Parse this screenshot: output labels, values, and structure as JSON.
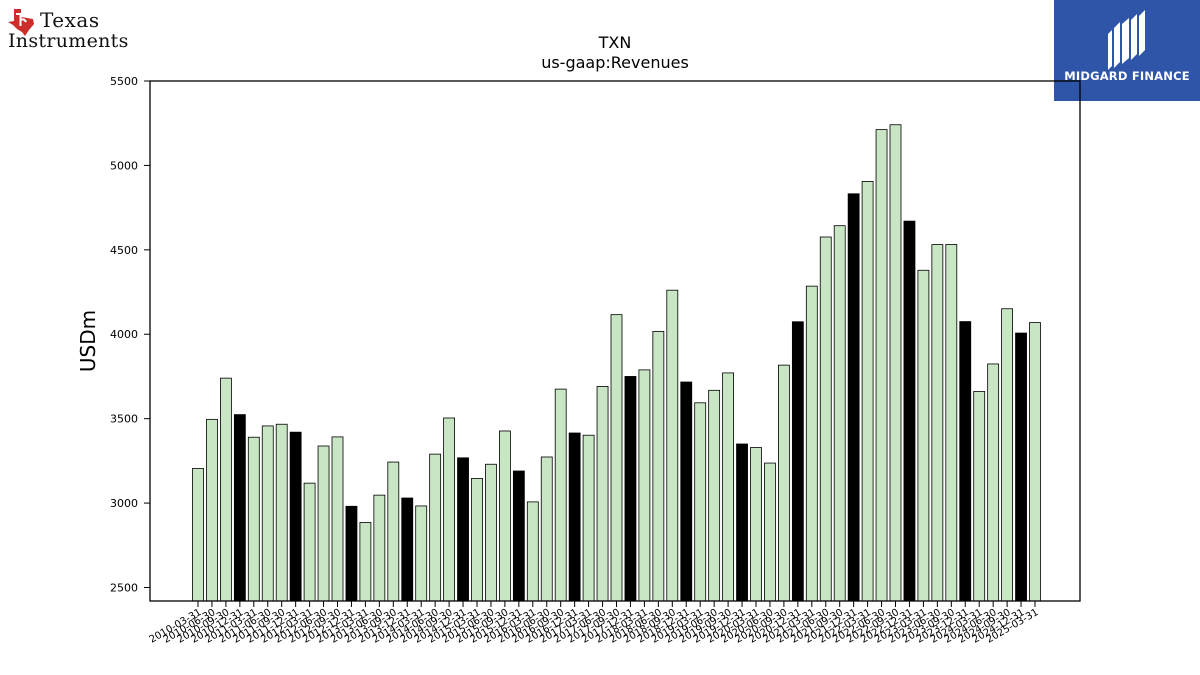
{
  "logos": {
    "left": {
      "line1": "Texas",
      "line2": "Instruments",
      "icon": "texas-state-icon",
      "color": "#cc2e2b"
    },
    "right": {
      "text": "MIDGARD FINANCE",
      "background": "#2e55a8"
    }
  },
  "chart_data": {
    "type": "bar",
    "title": "TXN",
    "subtitle": "us-gaap:Revenues",
    "xlabel": "",
    "ylabel": "USDm",
    "ylim": [
      2420,
      5500
    ],
    "yticks": [
      2500,
      3000,
      3500,
      4000,
      4500,
      5000,
      5500
    ],
    "grid": false,
    "colors": {
      "quarter": "#c8e6c3",
      "fiscal_year_end": "#000000",
      "edge": "#000000"
    },
    "categories": [
      "2010-03-31",
      "2010-06-30",
      "2010-09-30",
      "2010-12-31",
      "2011-03-31",
      "2011-06-30",
      "2011-09-30",
      "2011-12-31",
      "2012-03-31",
      "2012-06-30",
      "2012-09-30",
      "2012-12-31",
      "2013-03-31",
      "2013-06-30",
      "2013-09-30",
      "2013-12-31",
      "2014-03-31",
      "2014-06-30",
      "2014-09-30",
      "2014-12-31",
      "2015-03-31",
      "2015-06-30",
      "2015-09-30",
      "2015-12-31",
      "2016-03-31",
      "2016-06-30",
      "2016-09-30",
      "2016-12-31",
      "2017-03-31",
      "2017-06-30",
      "2017-09-30",
      "2017-12-31",
      "2018-03-31",
      "2018-06-30",
      "2018-09-30",
      "2018-12-31",
      "2019-03-31",
      "2019-06-30",
      "2019-09-30",
      "2019-12-31",
      "2020-03-31",
      "2020-06-30",
      "2020-09-30",
      "2020-12-31",
      "2021-03-31",
      "2021-06-30",
      "2021-09-30",
      "2021-12-31",
      "2022-03-31",
      "2022-06-30",
      "2022-09-30",
      "2022-12-31",
      "2023-03-31",
      "2023-06-30",
      "2023-09-30",
      "2023-12-31",
      "2024-03-31",
      "2024-06-30",
      "2024-09-30",
      "2024-12-31",
      "2025-03-31"
    ],
    "values": [
      3205,
      3496,
      3740,
      3524,
      3390,
      3457,
      3467,
      3420,
      3118,
      3338,
      3392,
      2981,
      2885,
      3047,
      3243,
      3030,
      2983,
      3290,
      3504,
      3268,
      3146,
      3230,
      3427,
      3190,
      3007,
      3273,
      3675,
      3415,
      3402,
      3691,
      4116,
      3750,
      3789,
      4017,
      4261,
      3717,
      3594,
      3668,
      3771,
      3350,
      3329,
      3237,
      3817,
      4074,
      4285,
      4576,
      4643,
      4832,
      4905,
      5212,
      5241,
      4670,
      4379,
      4531,
      4532,
      4075,
      3661,
      3824,
      4151,
      4007,
      4069
    ],
    "fiscal_year_end_flags": [
      0,
      0,
      0,
      1,
      0,
      0,
      0,
      1,
      0,
      0,
      0,
      1,
      0,
      0,
      0,
      1,
      0,
      0,
      0,
      1,
      0,
      0,
      0,
      1,
      0,
      0,
      0,
      1,
      0,
      0,
      0,
      1,
      0,
      0,
      0,
      1,
      0,
      0,
      0,
      1,
      0,
      0,
      0,
      1,
      0,
      0,
      0,
      1,
      0,
      0,
      0,
      1,
      0,
      0,
      0,
      1,
      0,
      0,
      0,
      1,
      0
    ]
  }
}
